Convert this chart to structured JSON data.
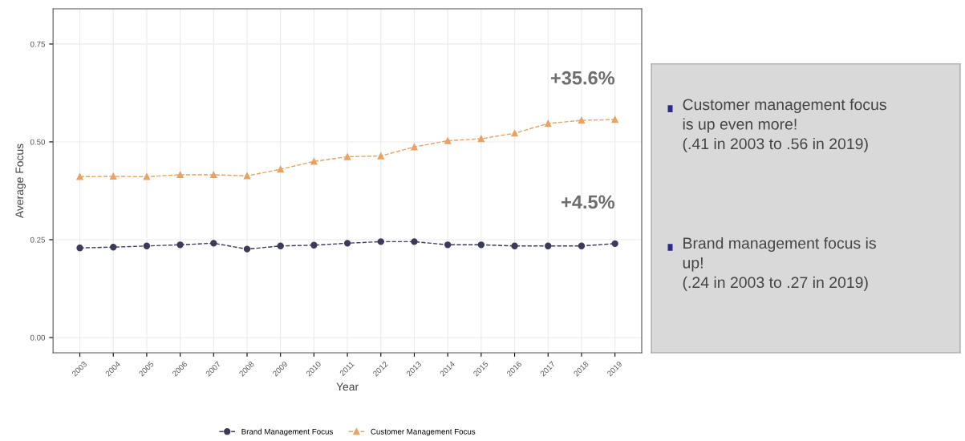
{
  "chart_data": [
    {
      "type": "line",
      "xlabel": "Year",
      "ylabel": "Average Focus",
      "categories": [
        "2003",
        "2004",
        "2005",
        "2006",
        "2007",
        "2008",
        "2009",
        "2010",
        "2011",
        "2012",
        "2013",
        "2014",
        "2015",
        "2016",
        "2017",
        "2018",
        "2019"
      ],
      "series": [
        {
          "name": "Brand Management Focus",
          "color": "#3b3a5a",
          "marker": "circle",
          "values": [
            0.229,
            0.231,
            0.234,
            0.237,
            0.241,
            0.226,
            0.234,
            0.236,
            0.241,
            0.245,
            0.245,
            0.237,
            0.237,
            0.234,
            0.234,
            0.234,
            0.24
          ]
        },
        {
          "name": "Customer Management Focus",
          "color": "#e8a263",
          "marker": "triangle",
          "values": [
            0.411,
            0.412,
            0.411,
            0.416,
            0.416,
            0.413,
            0.43,
            0.45,
            0.462,
            0.464,
            0.487,
            0.503,
            0.508,
            0.522,
            0.547,
            0.555,
            0.557
          ]
        }
      ],
      "line_style": "dashed",
      "ylim": [
        -0.039,
        0.84
      ],
      "yticks": [
        {
          "value": 0,
          "label": "0.00"
        },
        {
          "value": 0.25,
          "label": "0.25"
        },
        {
          "value": 0.5,
          "label": "0.50"
        },
        {
          "value": 0.75,
          "label": "0.75"
        }
      ],
      "grid": true,
      "legend": "bottom",
      "annotations": [
        {
          "text": "+35.6%",
          "x": "2019",
          "y": 0.557
        },
        {
          "text": "+4.5%",
          "x": "2019",
          "y": 0.24
        }
      ]
    },
    {
      "type": "other",
      "annotations": [
        "Customer management focus\nis up even more!\n(.41 in 2003 to .56 in 2019)",
        "Brand management focus is\nup!\n(.24 in 2003 to .27 in 2019)"
      ]
    }
  ]
}
